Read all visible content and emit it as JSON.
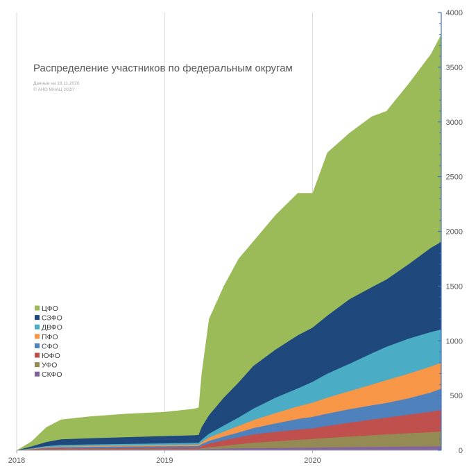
{
  "chart_data": {
    "type": "area",
    "stacked": true,
    "title": "Распределение участников по федеральным округам",
    "subtitle_lines": [
      "Данные на 18.11.2020",
      "© АНО МНАЦ 2020"
    ],
    "x": [
      2018.0,
      2018.1,
      2018.2,
      2018.3,
      2018.5,
      2018.75,
      2019.0,
      2019.2,
      2019.23,
      2019.25,
      2019.3,
      2019.4,
      2019.5,
      2019.6,
      2019.75,
      2019.9,
      2020.0,
      2020.1,
      2020.25,
      2020.4,
      2020.5,
      2020.65,
      2020.8,
      2020.87
    ],
    "x_ticks": [
      "2018",
      "2019",
      "2020"
    ],
    "x_tick_values": [
      2018,
      2019,
      2020
    ],
    "xlim": [
      2018.0,
      2020.87
    ],
    "ylim": [
      0,
      4000
    ],
    "y_ticks": [
      "0",
      "500",
      "1000",
      "1500",
      "2000",
      "2500",
      "3000",
      "3500",
      "4000"
    ],
    "y_tick_values": [
      0,
      500,
      1000,
      1500,
      2000,
      2500,
      3000,
      3500,
      4000
    ],
    "grid": "vertical",
    "legend_position": "left",
    "series": [
      {
        "name": "СКФО",
        "color": "#8064a2",
        "values": [
          0,
          2,
          4,
          5,
          6,
          7,
          8,
          9,
          9,
          10,
          12,
          15,
          17,
          19,
          21,
          23,
          24,
          26,
          28,
          30,
          31,
          33,
          35,
          36
        ]
      },
      {
        "name": "УФО",
        "color": "#948a54",
        "values": [
          0,
          3,
          6,
          8,
          9,
          10,
          11,
          12,
          12,
          18,
          28,
          40,
          55,
          68,
          82,
          95,
          102,
          112,
          125,
          137,
          145,
          155,
          165,
          172
        ]
      },
      {
        "name": "ЮФО",
        "color": "#c0504d",
        "values": [
          0,
          8,
          14,
          17,
          18,
          20,
          22,
          24,
          25,
          38,
          60,
          90,
          118,
          145,
          168,
          188,
          200,
          222,
          252,
          280,
          298,
          325,
          352,
          368
        ]
      },
      {
        "name": "СФО",
        "color": "#4f81bd",
        "values": [
          0,
          10,
          22,
          28,
          31,
          34,
          36,
          38,
          39,
          55,
          85,
          125,
          162,
          202,
          245,
          285,
          305,
          335,
          375,
          410,
          432,
          475,
          528,
          563
        ]
      },
      {
        "name": "ПФО",
        "color": "#f79646",
        "values": [
          0,
          13,
          28,
          35,
          39,
          43,
          47,
          50,
          51,
          72,
          115,
          170,
          222,
          275,
          340,
          400,
          435,
          480,
          540,
          600,
          640,
          700,
          765,
          800
        ]
      },
      {
        "name": "ДВФО",
        "color": "#4bacc6",
        "values": [
          0,
          18,
          38,
          48,
          53,
          58,
          63,
          67,
          68,
          95,
          150,
          225,
          300,
          380,
          480,
          565,
          625,
          700,
          790,
          885,
          945,
          1020,
          1080,
          1103
        ]
      },
      {
        "name": "СЗФО",
        "color": "#1f497d",
        "values": [
          0,
          35,
          75,
          100,
          110,
          120,
          130,
          137,
          140,
          210,
          320,
          480,
          620,
          770,
          920,
          1050,
          1120,
          1230,
          1380,
          1490,
          1560,
          1700,
          1850,
          1903
        ]
      },
      {
        "name": "ЦФО",
        "color": "#9bbb59",
        "values": [
          0,
          80,
          210,
          280,
          310,
          335,
          350,
          380,
          390,
          700,
          1200,
          1500,
          1750,
          1910,
          2150,
          2350,
          2350,
          2720,
          2900,
          3050,
          3100,
          3350,
          3620,
          3800
        ]
      }
    ]
  }
}
